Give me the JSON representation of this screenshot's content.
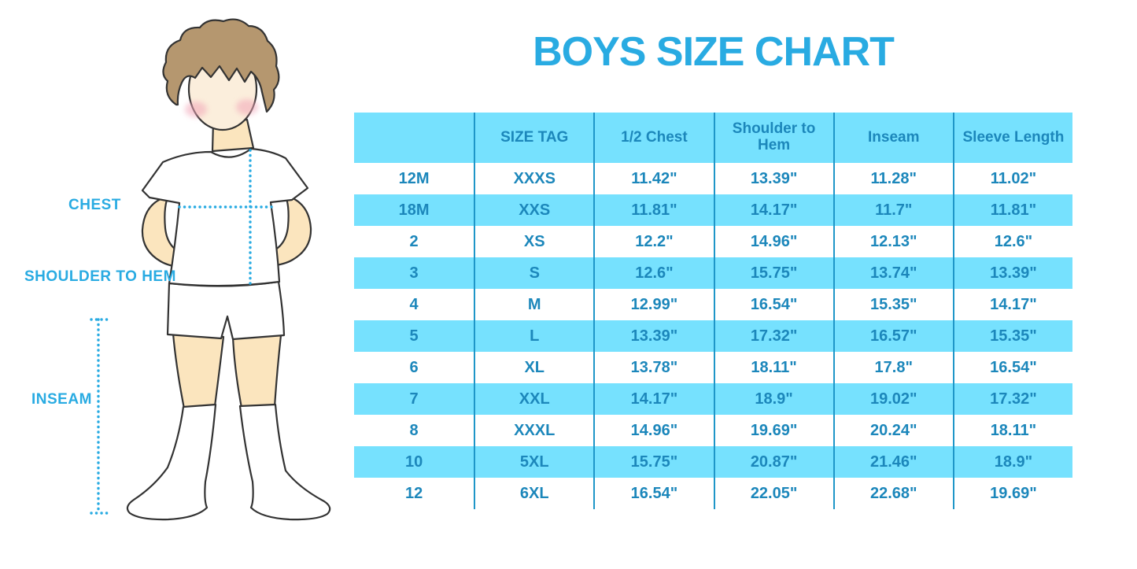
{
  "title": "BOYS SIZE CHART",
  "figure_labels": {
    "chest": "CHEST",
    "shoulder_to_hem": "SHOULDER TO HEM",
    "inseam": "INSEAM"
  },
  "colors": {
    "title_blue": "#29ABE2",
    "label_blue": "#29ABE2",
    "row_cyan": "#76E1FE",
    "table_text": "#1C87BB",
    "divider": "#1F96C8",
    "skin": "#FBE5BE",
    "face": "#FBEEDC",
    "hair": "#B5976F",
    "blush": "#F2A6B8",
    "outline": "#333333",
    "cloth_white": "#FFFFFF"
  },
  "chart_data": {
    "type": "table",
    "title": "BOYS SIZE CHART",
    "columns": [
      "",
      "SIZE TAG",
      "1/2 Chest",
      "Shoulder to Hem",
      "Inseam",
      "Sleeve Length"
    ],
    "rows": [
      [
        "12M",
        "XXXS",
        "11.42\"",
        "13.39\"",
        "11.28\"",
        "11.02\""
      ],
      [
        "18M",
        "XXS",
        "11.81\"",
        "14.17\"",
        "11.7\"",
        "11.81\""
      ],
      [
        "2",
        "XS",
        "12.2\"",
        "14.96\"",
        "12.13\"",
        "12.6\""
      ],
      [
        "3",
        "S",
        "12.6\"",
        "15.75\"",
        "13.74\"",
        "13.39\""
      ],
      [
        "4",
        "M",
        "12.99\"",
        "16.54\"",
        "15.35\"",
        "14.17\""
      ],
      [
        "5",
        "L",
        "13.39\"",
        "17.32\"",
        "16.57\"",
        "15.35\""
      ],
      [
        "6",
        "XL",
        "13.78\"",
        "18.11\"",
        "17.8\"",
        "16.54\""
      ],
      [
        "7",
        "XXL",
        "14.17\"",
        "18.9\"",
        "19.02\"",
        "17.32\""
      ],
      [
        "8",
        "XXXL",
        "14.96\"",
        "19.69\"",
        "20.24\"",
        "18.11\""
      ],
      [
        "10",
        "5XL",
        "15.75\"",
        "20.87\"",
        "21.46\"",
        "18.9\""
      ],
      [
        "12",
        "6XL",
        "16.54\"",
        "22.05\"",
        "22.68\"",
        "19.69\""
      ]
    ],
    "striped_rows": "alternating white/cyan starting white; header row cyan",
    "legend_position": "none",
    "grid": "vertical column dividers only"
  }
}
